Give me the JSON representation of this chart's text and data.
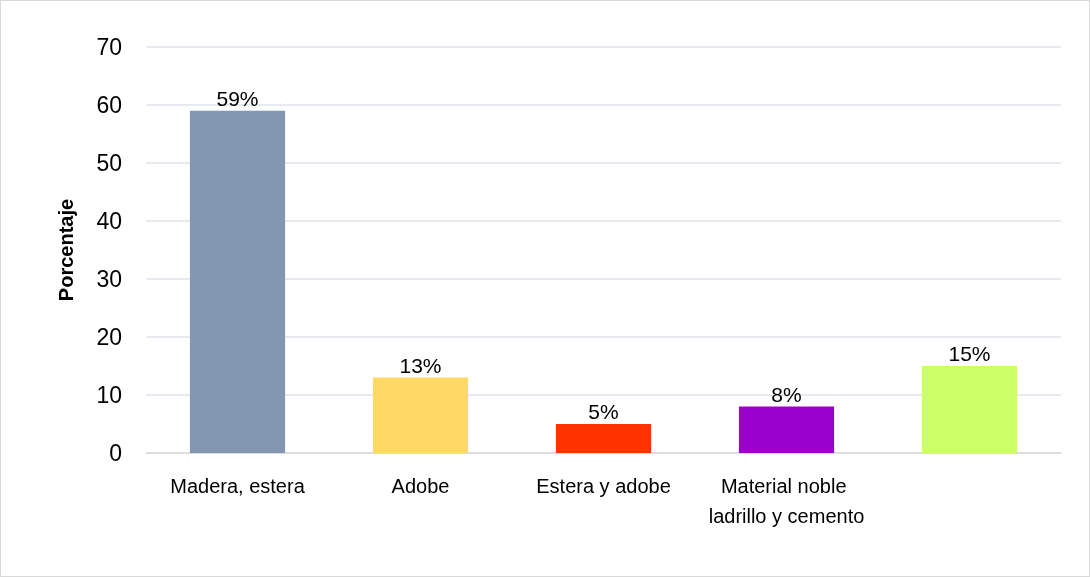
{
  "chart_data": {
    "type": "bar",
    "ylabel": "Porcentaje",
    "categories": [
      "Madera, estera",
      "Adobe",
      "Estera y adobe",
      "Material noble ladrillo y cemento",
      null
    ],
    "values": [
      59,
      13,
      5,
      8,
      15
    ],
    "colors": [
      "#8497b0",
      "#ffd966",
      "#ff3300",
      "#9900cc",
      "#ccff66"
    ],
    "value_labels": [
      "59%",
      "13%",
      "5%",
      "8%",
      "15%"
    ],
    "ylim": [
      0,
      70
    ],
    "yticks": [
      0,
      10,
      20,
      30,
      40,
      50,
      60,
      70
    ],
    "grid": "y"
  }
}
